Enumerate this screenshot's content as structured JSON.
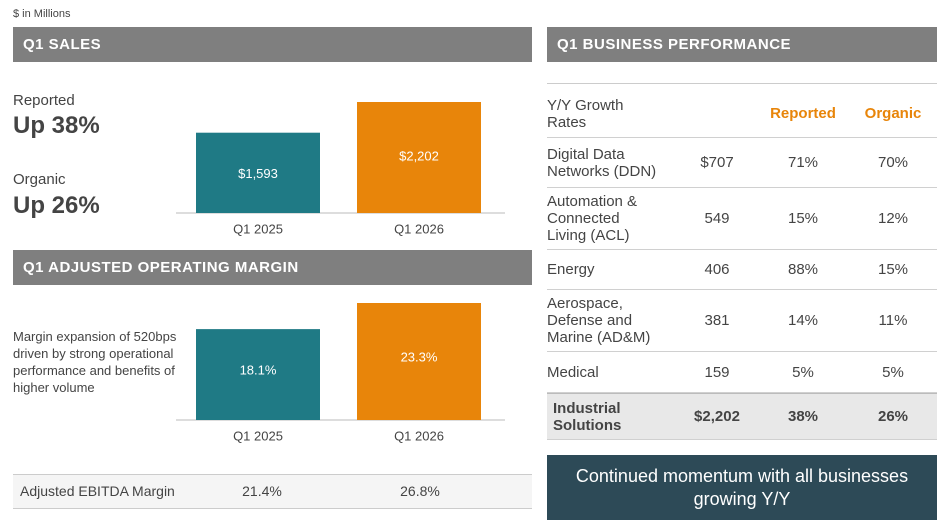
{
  "unit_note": "$ in Millions",
  "sales": {
    "header": "Q1 SALES",
    "reported_label": "Reported",
    "reported_value": "Up 38%",
    "organic_label": "Organic",
    "organic_value": "Up 26%"
  },
  "margin": {
    "header": "Q1 ADJUSTED OPERATING MARGIN",
    "note": "Margin expansion of 520bps driven by strong operational performance and benefits of higher volume"
  },
  "chart_data": [
    {
      "type": "bar",
      "categories": [
        "Q1 2025",
        "Q1 2026"
      ],
      "values": [
        1593,
        2202
      ],
      "value_labels": [
        "$1,593",
        "$2,202"
      ],
      "colors": [
        "#1f7a85",
        "#e8850a"
      ]
    },
    {
      "type": "bar",
      "categories": [
        "Q1 2025",
        "Q1 2026"
      ],
      "values": [
        18.1,
        23.3
      ],
      "value_labels": [
        "18.1%",
        "23.3%"
      ],
      "colors": [
        "#1f7a85",
        "#e8850a"
      ]
    }
  ],
  "ebitda": {
    "label": "Adjusted EBITDA Margin",
    "values": [
      "21.4%",
      "26.8%"
    ]
  },
  "business": {
    "header": "Q1 BUSINESS PERFORMANCE",
    "columns": [
      "Y/Y Growth Rates",
      "Reported",
      "Organic"
    ],
    "rows": [
      [
        "Digital Data Networks (DDN)",
        "$707",
        "71%",
        "70%"
      ],
      [
        "Automation & Connected Living (ACL)",
        "549",
        "15%",
        "12%"
      ],
      [
        "Energy",
        "406",
        "88%",
        "15%"
      ],
      [
        "Aerospace, Defense and Marine (AD&M)",
        "381",
        "14%",
        "11%"
      ],
      [
        "Medical",
        "159",
        "5%",
        "5%"
      ]
    ],
    "total": [
      "Industrial Solutions",
      "$2,202",
      "38%",
      "26%"
    ]
  },
  "callout": "Continued momentum with all businesses growing Y/Y"
}
